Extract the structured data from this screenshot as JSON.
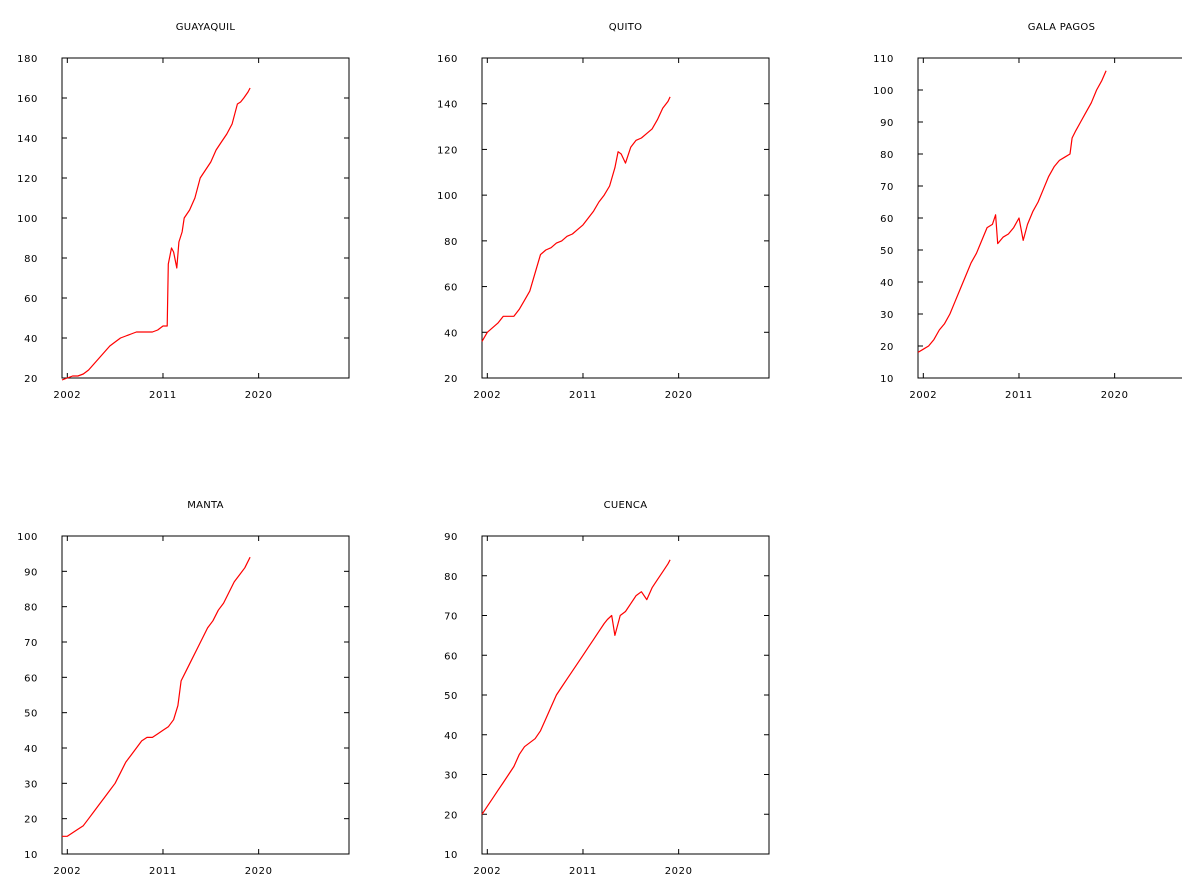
{
  "chart_data": [
    {
      "type": "line",
      "title": "GUAYAQUIL",
      "color": "#ff0000",
      "xlim": [
        2001.5,
        2028.5
      ],
      "ylim": [
        20,
        180
      ],
      "xticks": [
        2002,
        2011,
        2020
      ],
      "yticks": [
        20,
        40,
        60,
        80,
        100,
        120,
        140,
        160,
        180
      ],
      "x": [
        2001.5,
        2002.0,
        2002.5,
        2003.0,
        2003.5,
        2004.0,
        2004.5,
        2005.0,
        2005.5,
        2006.0,
        2006.5,
        2007.0,
        2007.5,
        2008.0,
        2008.5,
        2009.0,
        2009.5,
        2010.0,
        2010.5,
        2011.0,
        2011.4,
        2011.5,
        2011.8,
        2012.0,
        2012.3,
        2012.5,
        2012.8,
        2013.0,
        2013.5,
        2014.0,
        2014.5,
        2015.0,
        2015.5,
        2016.0,
        2016.5,
        2017.0,
        2017.5,
        2018.0,
        2018.3,
        2018.6,
        2019.0,
        2019.2
      ],
      "y": [
        19,
        20,
        21,
        21,
        22,
        24,
        27,
        30,
        33,
        36,
        38,
        40,
        41,
        42,
        43,
        43,
        43,
        43,
        44,
        46,
        46,
        77,
        85,
        83,
        75,
        88,
        93,
        100,
        104,
        110,
        120,
        124,
        128,
        134,
        138,
        142,
        147,
        157,
        158,
        160,
        163,
        165
      ]
    },
    {
      "type": "line",
      "title": "QUITO",
      "color": "#ff0000",
      "xlim": [
        2001.5,
        2028.5
      ],
      "ylim": [
        20,
        160
      ],
      "xticks": [
        2002,
        2011,
        2020
      ],
      "yticks": [
        20,
        40,
        60,
        80,
        100,
        120,
        140,
        160
      ],
      "x": [
        2001.5,
        2002.0,
        2002.5,
        2003.0,
        2003.5,
        2004.0,
        2004.5,
        2005.0,
        2005.5,
        2006.0,
        2006.5,
        2007.0,
        2007.5,
        2008.0,
        2008.5,
        2009.0,
        2009.5,
        2010.0,
        2010.5,
        2011.0,
        2011.5,
        2012.0,
        2012.5,
        2013.0,
        2013.5,
        2014.0,
        2014.3,
        2014.6,
        2015.0,
        2015.5,
        2016.0,
        2016.5,
        2017.0,
        2017.5,
        2018.0,
        2018.5,
        2019.0,
        2019.2
      ],
      "y": [
        36,
        40,
        42,
        44,
        47,
        47,
        47,
        50,
        54,
        58,
        66,
        74,
        76,
        77,
        79,
        80,
        82,
        83,
        85,
        87,
        90,
        93,
        97,
        100,
        104,
        112,
        119,
        118,
        114,
        121,
        124,
        125,
        127,
        129,
        133,
        138,
        141,
        143
      ]
    },
    {
      "type": "line",
      "title": "GALA PAGOS",
      "color": "#ff0000",
      "xlim": [
        2001.5,
        2028.5
      ],
      "ylim": [
        10,
        110
      ],
      "xticks": [
        2002,
        2011,
        2020
      ],
      "yticks": [
        10,
        20,
        30,
        40,
        50,
        60,
        70,
        80,
        90,
        100,
        110
      ],
      "x": [
        2001.5,
        2002.0,
        2002.5,
        2003.0,
        2003.5,
        2004.0,
        2004.5,
        2005.0,
        2005.5,
        2006.0,
        2006.5,
        2007.0,
        2007.5,
        2008.0,
        2008.5,
        2008.8,
        2009.0,
        2009.5,
        2010.0,
        2010.5,
        2011.0,
        2011.4,
        2011.8,
        2012.3,
        2012.8,
        2013.3,
        2013.8,
        2014.3,
        2014.8,
        2015.3,
        2015.8,
        2016.0,
        2016.3,
        2016.8,
        2017.3,
        2017.8,
        2018.3,
        2018.8,
        2019.2
      ],
      "y": [
        18,
        19,
        20,
        22,
        25,
        27,
        30,
        34,
        38,
        42,
        46,
        49,
        53,
        57,
        58,
        61,
        52,
        54,
        55,
        57,
        60,
        53,
        58,
        62,
        65,
        69,
        73,
        76,
        78,
        79,
        80,
        85,
        87,
        90,
        93,
        96,
        100,
        103,
        106
      ]
    },
    {
      "type": "line",
      "title": "MANTA",
      "color": "#ff0000",
      "xlim": [
        2001.5,
        2028.5
      ],
      "ylim": [
        10,
        100
      ],
      "xticks": [
        2002,
        2011,
        2020
      ],
      "yticks": [
        10,
        20,
        30,
        40,
        50,
        60,
        70,
        80,
        90,
        100
      ],
      "x": [
        2001.5,
        2002.0,
        2002.5,
        2003.0,
        2003.5,
        2004.0,
        2004.5,
        2005.0,
        2005.5,
        2006.0,
        2006.5,
        2007.0,
        2007.5,
        2008.0,
        2008.5,
        2009.0,
        2009.5,
        2010.0,
        2010.5,
        2011.0,
        2011.5,
        2012.0,
        2012.4,
        2012.7,
        2013.2,
        2013.7,
        2014.2,
        2014.7,
        2015.2,
        2015.7,
        2016.2,
        2016.7,
        2017.2,
        2017.7,
        2018.2,
        2018.7,
        2019.2
      ],
      "y": [
        15,
        15,
        16,
        17,
        18,
        20,
        22,
        24,
        26,
        28,
        30,
        33,
        36,
        38,
        40,
        42,
        43,
        43,
        44,
        45,
        46,
        48,
        52,
        59,
        62,
        65,
        68,
        71,
        74,
        76,
        79,
        81,
        84,
        87,
        89,
        91,
        94
      ]
    },
    {
      "type": "line",
      "title": "CUENCA",
      "color": "#ff0000",
      "xlim": [
        2001.5,
        2028.5
      ],
      "ylim": [
        10,
        90
      ],
      "xticks": [
        2002,
        2011,
        2020
      ],
      "yticks": [
        10,
        20,
        30,
        40,
        50,
        60,
        70,
        80,
        90
      ],
      "x": [
        2001.5,
        2002.0,
        2002.5,
        2003.0,
        2003.5,
        2004.0,
        2004.5,
        2005.0,
        2005.5,
        2006.0,
        2006.5,
        2007.0,
        2007.5,
        2008.0,
        2008.5,
        2009.0,
        2009.5,
        2010.0,
        2010.5,
        2011.0,
        2011.5,
        2012.0,
        2012.5,
        2013.0,
        2013.3,
        2013.7,
        2014.0,
        2014.5,
        2015.0,
        2015.5,
        2016.0,
        2016.5,
        2017.0,
        2017.5,
        2018.0,
        2018.5,
        2019.0,
        2019.2
      ],
      "y": [
        20,
        22,
        24,
        26,
        28,
        30,
        32,
        35,
        37,
        38,
        39,
        41,
        44,
        47,
        50,
        52,
        54,
        56,
        58,
        60,
        62,
        64,
        66,
        68,
        69,
        70,
        65,
        70,
        71,
        73,
        75,
        76,
        74,
        77,
        79,
        81,
        83,
        84
      ]
    }
  ]
}
